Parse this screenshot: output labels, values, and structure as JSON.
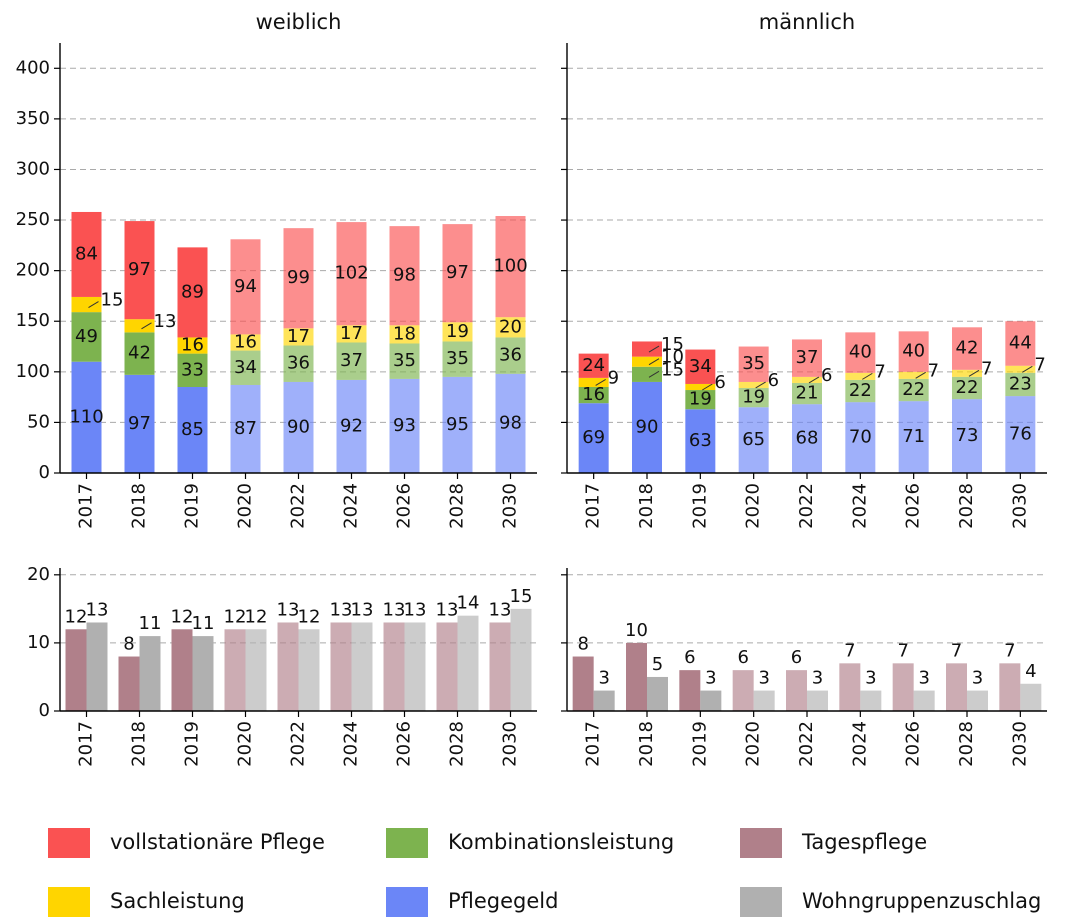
{
  "chart_data": [
    {
      "type": "stacked_bar",
      "title": "weiblich",
      "categories": [
        "2017",
        "2018",
        "2019",
        "2020",
        "2022",
        "2024",
        "2026",
        "2028",
        "2030"
      ],
      "series": [
        {
          "name": "Pflegegeld",
          "color": "#6b86f7",
          "values": [
            110,
            97,
            85,
            87,
            90,
            92,
            93,
            95,
            98
          ]
        },
        {
          "name": "Kombinationsleistung",
          "color": "#7db34f",
          "values": [
            49,
            42,
            33,
            34,
            36,
            37,
            35,
            35,
            36
          ]
        },
        {
          "name": "Sachleistung",
          "color": "#ffd500",
          "values": [
            15,
            13,
            16,
            16,
            17,
            17,
            18,
            19,
            20
          ]
        },
        {
          "name": "vollstationäre Pflege",
          "color": "#fa5252",
          "values": [
            84,
            97,
            89,
            94,
            99,
            102,
            98,
            97,
            100
          ]
        }
      ],
      "ylim": [
        0,
        425
      ],
      "yticks": [
        0,
        50,
        100,
        150,
        200,
        250,
        300,
        350,
        400
      ],
      "tick_labels": true,
      "grid": true,
      "projection_from": "2020",
      "faded_opacity": 0.65
    },
    {
      "type": "stacked_bar",
      "title": "männlich",
      "categories": [
        "2017",
        "2018",
        "2019",
        "2020",
        "2022",
        "2024",
        "2026",
        "2028",
        "2030"
      ],
      "series": [
        {
          "name": "Pflegegeld",
          "color": "#6b86f7",
          "values": [
            69,
            90,
            63,
            65,
            68,
            70,
            71,
            73,
            76
          ]
        },
        {
          "name": "Kombinationsleistung",
          "color": "#7db34f",
          "values": [
            16,
            15,
            19,
            19,
            21,
            22,
            22,
            22,
            23
          ]
        },
        {
          "name": "Sachleistung",
          "color": "#ffd500",
          "values": [
            9,
            10,
            6,
            6,
            6,
            7,
            7,
            7,
            7
          ]
        },
        {
          "name": "vollstationäre Pflege",
          "color": "#fa5252",
          "values": [
            24,
            15,
            34,
            35,
            37,
            40,
            40,
            42,
            44
          ]
        }
      ],
      "ylim": [
        0,
        425
      ],
      "yticks": [
        0,
        50,
        100,
        150,
        200,
        250,
        300,
        350,
        400
      ],
      "tick_labels": false,
      "grid": true,
      "projection_from": "2020",
      "faded_opacity": 0.65
    },
    {
      "type": "bar",
      "categories": [
        "2017",
        "2018",
        "2019",
        "2020",
        "2022",
        "2024",
        "2026",
        "2028",
        "2030"
      ],
      "series": [
        {
          "name": "Tagespflege",
          "color": "#b0808a",
          "values": [
            12,
            8,
            12,
            12,
            13,
            13,
            13,
            13,
            13
          ]
        },
        {
          "name": "Wohngruppenzuschlag",
          "color": "#b0b0b0",
          "values": [
            13,
            11,
            11,
            12,
            12,
            13,
            13,
            14,
            15
          ]
        }
      ],
      "ylim": [
        0,
        21
      ],
      "yticks": [
        0,
        10,
        20
      ],
      "tick_labels": true,
      "grid": true,
      "projection_from": "2020",
      "faded_opacity": 0.65
    },
    {
      "type": "bar",
      "categories": [
        "2017",
        "2018",
        "2019",
        "2020",
        "2022",
        "2024",
        "2026",
        "2028",
        "2030"
      ],
      "series": [
        {
          "name": "Tagespflege",
          "color": "#b0808a",
          "values": [
            8,
            10,
            6,
            6,
            6,
            7,
            7,
            7,
            7
          ]
        },
        {
          "name": "Wohngruppenzuschlag",
          "color": "#b0b0b0",
          "values": [
            3,
            5,
            3,
            3,
            3,
            3,
            3,
            3,
            4
          ]
        }
      ],
      "ylim": [
        0,
        21
      ],
      "yticks": [
        0,
        10,
        20
      ],
      "tick_labels": false,
      "grid": true,
      "projection_from": "2020",
      "faded_opacity": 0.65
    }
  ]
}
